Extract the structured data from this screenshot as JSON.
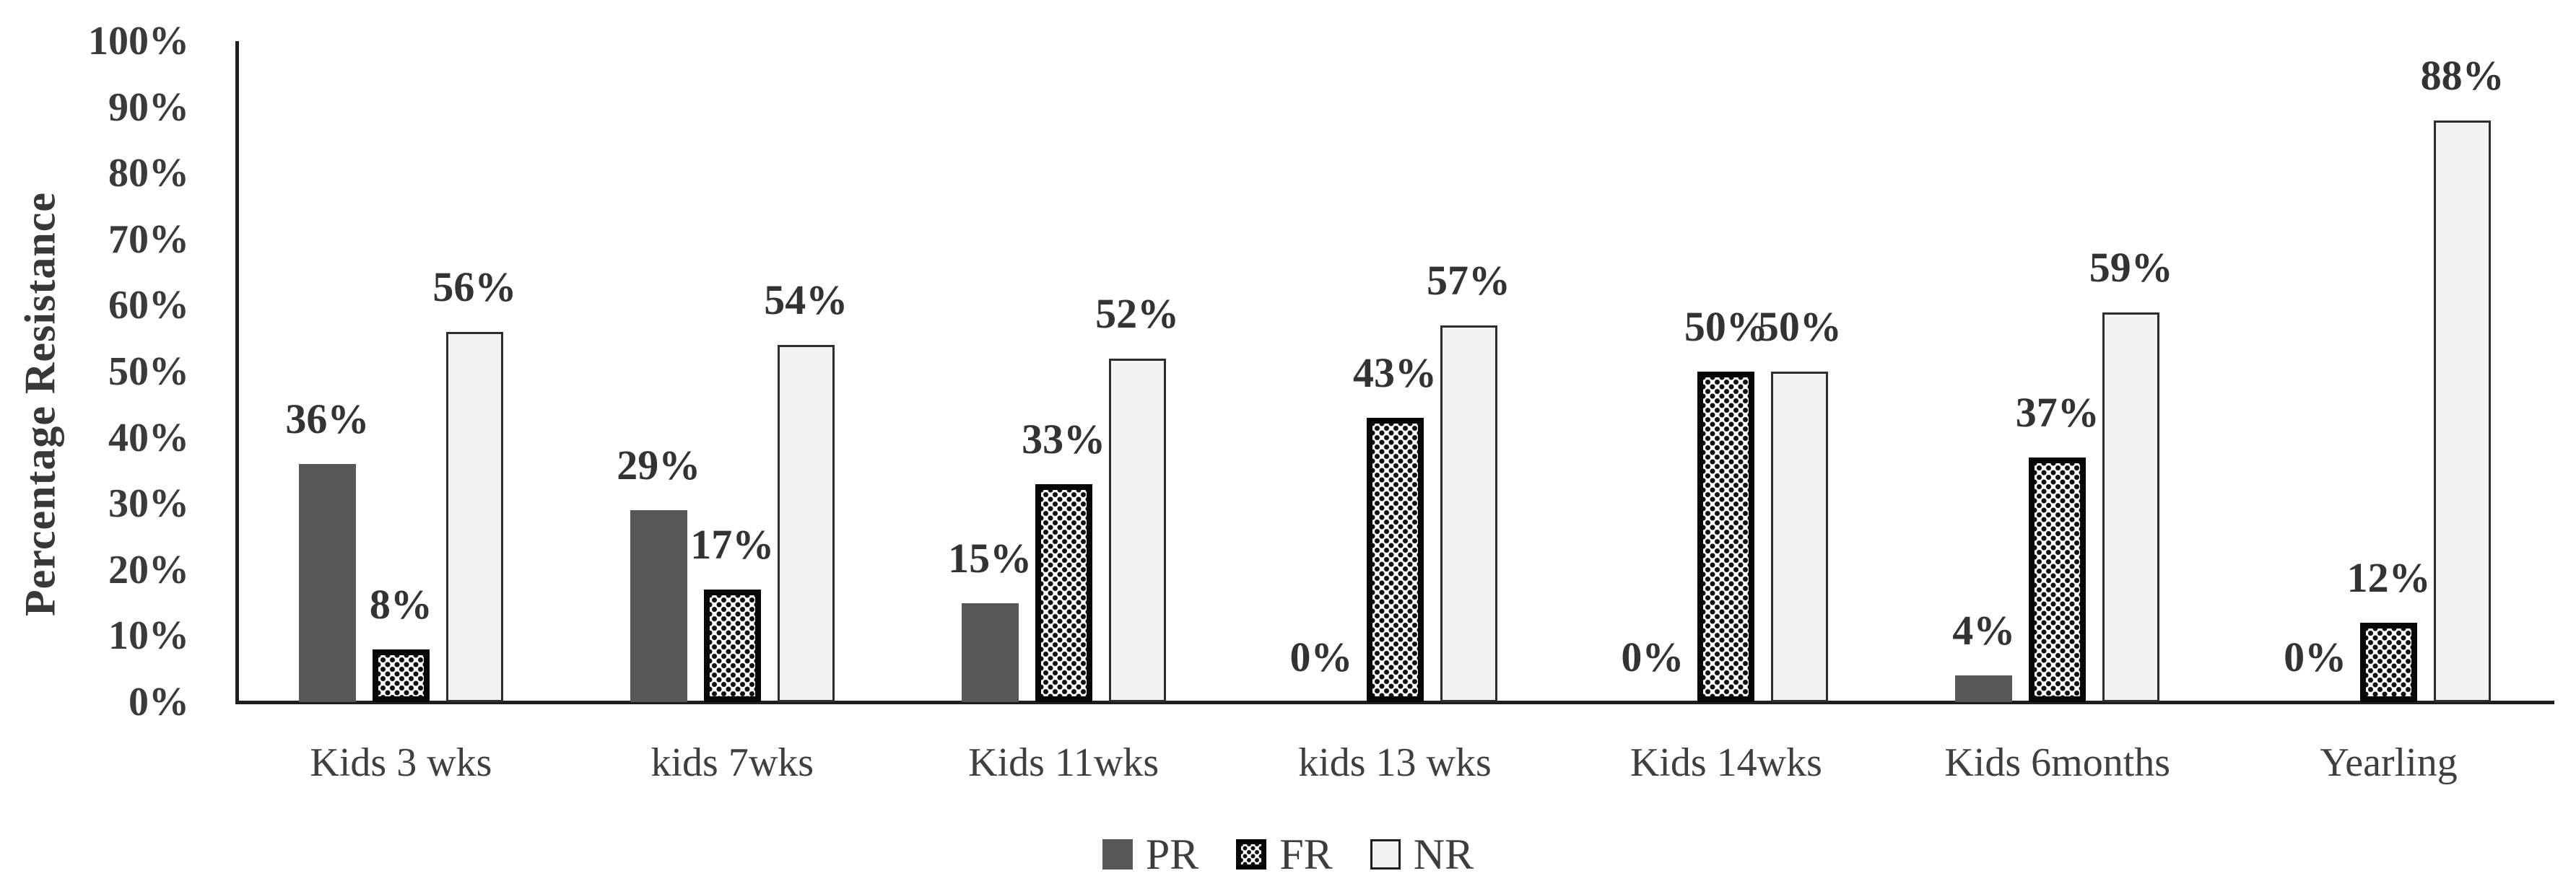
{
  "chart_data": {
    "type": "bar",
    "title": "",
    "ylabel": "Percentage Resistance",
    "xlabel": "",
    "categories": [
      "Kids 3 wks",
      "kids 7wks",
      "Kids 11wks",
      "kids 13 wks",
      "Kids 14wks",
      "Kids 6months",
      "Yearling"
    ],
    "series": [
      {
        "name": "PR",
        "values": [
          36,
          29,
          15,
          0,
          0,
          4,
          0
        ]
      },
      {
        "name": "FR",
        "values": [
          8,
          17,
          33,
          43,
          50,
          37,
          12
        ]
      },
      {
        "name": "NR",
        "values": [
          56,
          54,
          52,
          57,
          50,
          59,
          88
        ]
      }
    ],
    "value_labels": [
      [
        "36%",
        "29%",
        "15%",
        "0%",
        "0%",
        "4%",
        "0%"
      ],
      [
        "8%",
        "17%",
        "33%",
        "43%",
        "50%",
        "37%",
        "12%"
      ],
      [
        "56%",
        "54%",
        "52%",
        "57%",
        "50%",
        "59%",
        "88%"
      ]
    ],
    "ylim": [
      0,
      100
    ],
    "yticks": [
      "0%",
      "10%",
      "20%",
      "30%",
      "40%",
      "50%",
      "60%",
      "70%",
      "80%",
      "90%",
      "100%"
    ],
    "grid": false,
    "legend_position": "bottom"
  },
  "colors": {
    "pr_fill": "#575757",
    "fr_dot": "#101010",
    "fr_border": "#070707",
    "nr_fill": "#f2f2f2",
    "nr_border": "#2e2e2e",
    "axis": "#1f1f1f",
    "text": "#3a3a3a",
    "background": "#ffffff"
  }
}
